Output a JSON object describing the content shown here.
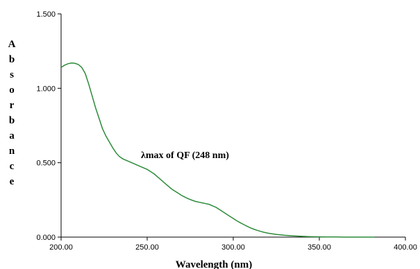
{
  "chart_data": {
    "type": "line",
    "title": "",
    "xlabel": "Wavelength (nm)",
    "ylabel": "Absorbance",
    "xlim": [
      200,
      400
    ],
    "ylim": [
      0,
      1.5
    ],
    "xticks": [
      "200.00",
      "250.00",
      "300.00",
      "350.00",
      "400.00"
    ],
    "yticks": [
      "0.000",
      "0.500",
      "1.000",
      "1.500"
    ],
    "grid": false,
    "annotation": "λmax of  QF (248 nm)",
    "line_color": "#2e8b3a",
    "series": [
      {
        "x": [
          200,
          202,
          204,
          206,
          208,
          210,
          212,
          214,
          216,
          218,
          220,
          222,
          224,
          226,
          228,
          230,
          232,
          234,
          236,
          238,
          240,
          242,
          244,
          246,
          248,
          250,
          252,
          254,
          256,
          258,
          260,
          262,
          264,
          266,
          268,
          270,
          272,
          274,
          276,
          278,
          280,
          282,
          284,
          286,
          288,
          290,
          292,
          294,
          296,
          298,
          300,
          302,
          304,
          306,
          308,
          310,
          312,
          314,
          316,
          318,
          320,
          325,
          330,
          335,
          340,
          345,
          350,
          355,
          360,
          365,
          370,
          375,
          380,
          382
        ],
        "y": [
          1.14,
          1.155,
          1.165,
          1.17,
          1.168,
          1.16,
          1.14,
          1.1,
          1.03,
          0.95,
          0.87,
          0.8,
          0.73,
          0.68,
          0.64,
          0.6,
          0.565,
          0.54,
          0.525,
          0.515,
          0.505,
          0.495,
          0.485,
          0.475,
          0.465,
          0.455,
          0.44,
          0.425,
          0.405,
          0.385,
          0.365,
          0.345,
          0.325,
          0.31,
          0.295,
          0.28,
          0.268,
          0.257,
          0.248,
          0.24,
          0.235,
          0.23,
          0.225,
          0.22,
          0.21,
          0.2,
          0.185,
          0.17,
          0.155,
          0.14,
          0.125,
          0.11,
          0.097,
          0.085,
          0.073,
          0.062,
          0.053,
          0.045,
          0.038,
          0.032,
          0.027,
          0.018,
          0.012,
          0.008,
          0.005,
          0.003,
          0.002,
          0.001,
          0.001,
          0.0,
          0.0,
          0.0,
          0.0,
          0.0
        ]
      }
    ]
  }
}
